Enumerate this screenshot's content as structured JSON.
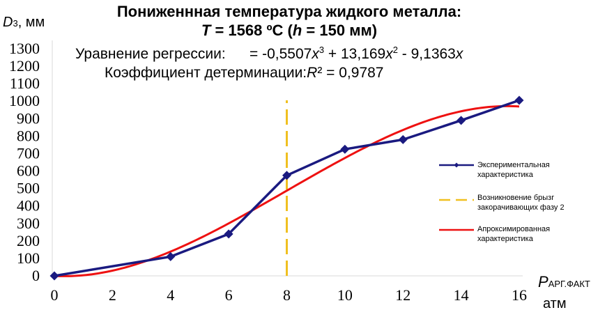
{
  "chart_data": {
    "type": "line",
    "title_line1": "Пониженнная температура жидкого металла:",
    "title_line2": {
      "var_t": "T",
      "t_value": " = 1568 ºC  (",
      "var_h": "h",
      "h_value": " = 150  мм)"
    },
    "ylabel": {
      "main": "D",
      "sub": "3",
      "unit": ", мм"
    },
    "xlabel": {
      "main": "P",
      "sub": "АРГ.ФАКТ",
      "unit": "атм"
    },
    "xlim": [
      0,
      16
    ],
    "ylim": [
      0,
      1300
    ],
    "x_ticks": [
      "0",
      "2",
      "4",
      "6",
      "8",
      "10",
      "12",
      "14",
      "16"
    ],
    "y_ticks": [
      "0",
      "100",
      "200",
      "300",
      "400",
      "500",
      "600",
      "700",
      "800",
      "900",
      "1000",
      "1100",
      "1200",
      "1300"
    ],
    "equation": {
      "label": "Уравнение регрессии:",
      "t1": "= -0,5507",
      "x": "x",
      "e3": "3",
      "t2": " + 13,169",
      "e2": "2",
      "t3": " - 9,1363"
    },
    "determination": {
      "label": "Коэффициент детерминации:",
      "R": "R",
      "value": "² = 0,9787"
    },
    "series": [
      {
        "name": "Экспериментальная характеристика",
        "color": "#1a1a80",
        "marker": "diamond",
        "x": [
          0,
          4,
          6,
          8,
          10,
          12,
          14,
          16
        ],
        "values": [
          0,
          110,
          240,
          575,
          725,
          780,
          890,
          1005
        ]
      },
      {
        "name": "Возникновение брызг закорачивающих фазу 2",
        "color": "#f0c020",
        "style": "dashed",
        "x": [
          8,
          8
        ],
        "values": [
          0,
          1005
        ]
      },
      {
        "name": "Апроксимированная характеристика",
        "color": "#ee1111",
        "style": "smooth",
        "coefficients": {
          "a3": -0.5507,
          "a2": 13.169,
          "a1": -9.1363
        },
        "x_range": [
          0,
          16
        ]
      }
    ],
    "legend": {
      "position": "right",
      "items": [
        {
          "line1": "Экспериментальная",
          "line2": "характеристика"
        },
        {
          "line1": "Возникновение брызг",
          "line2": "закорачивающих фазу 2"
        },
        {
          "line1": "Апроксимированная",
          "line2": "характеристика"
        }
      ]
    },
    "grid": false
  }
}
